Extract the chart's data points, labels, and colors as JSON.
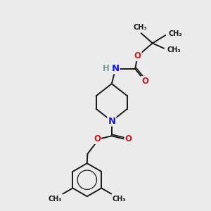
{
  "bg_color": "#ebebeb",
  "bond_color": "#1a1a1a",
  "N_color": "#1a1acc",
  "O_color": "#cc1a1a",
  "H_color": "#7a9a9a",
  "font_size": 8.5,
  "bond_width": 1.4,
  "fig_size": [
    3.0,
    3.0
  ],
  "dpi": 100,
  "xlim": [
    0,
    10
  ],
  "ylim": [
    0,
    10
  ]
}
